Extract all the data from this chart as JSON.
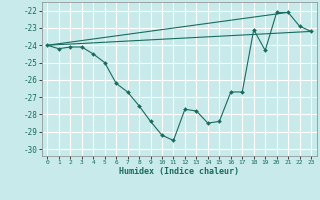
{
  "xlabel": "Humidex (Indice chaleur)",
  "ylabel": "",
  "bg_color": "#c8eaea",
  "grid_color": "#ffffff",
  "line_color": "#1a6b5e",
  "xlim": [
    -0.5,
    23.5
  ],
  "ylim": [
    -30.4,
    -21.5
  ],
  "yticks": [
    -30,
    -29,
    -28,
    -27,
    -26,
    -25,
    -24,
    -23,
    -22
  ],
  "xticks": [
    0,
    1,
    2,
    3,
    4,
    5,
    6,
    7,
    8,
    9,
    10,
    11,
    12,
    13,
    14,
    15,
    16,
    17,
    18,
    19,
    20,
    21,
    22,
    23
  ],
  "line1_x": [
    0,
    1,
    2,
    3,
    4,
    5,
    6,
    7,
    8,
    9,
    10,
    11,
    12,
    13,
    14,
    15,
    16,
    17,
    18,
    19,
    20,
    21,
    22,
    23
  ],
  "line1_y": [
    -24.0,
    -24.2,
    -24.1,
    -24.1,
    -24.5,
    -25.0,
    -26.2,
    -26.7,
    -27.5,
    -28.4,
    -29.2,
    -29.5,
    -27.7,
    -27.8,
    -28.5,
    -28.4,
    -26.7,
    -26.7,
    -23.1,
    -24.3,
    -22.1,
    -22.1,
    -22.9,
    -23.2
  ],
  "line2_x": [
    0,
    21
  ],
  "line2_y": [
    -24.0,
    -22.1
  ],
  "line3_x": [
    0,
    23
  ],
  "line3_y": [
    -24.0,
    -23.2
  ]
}
